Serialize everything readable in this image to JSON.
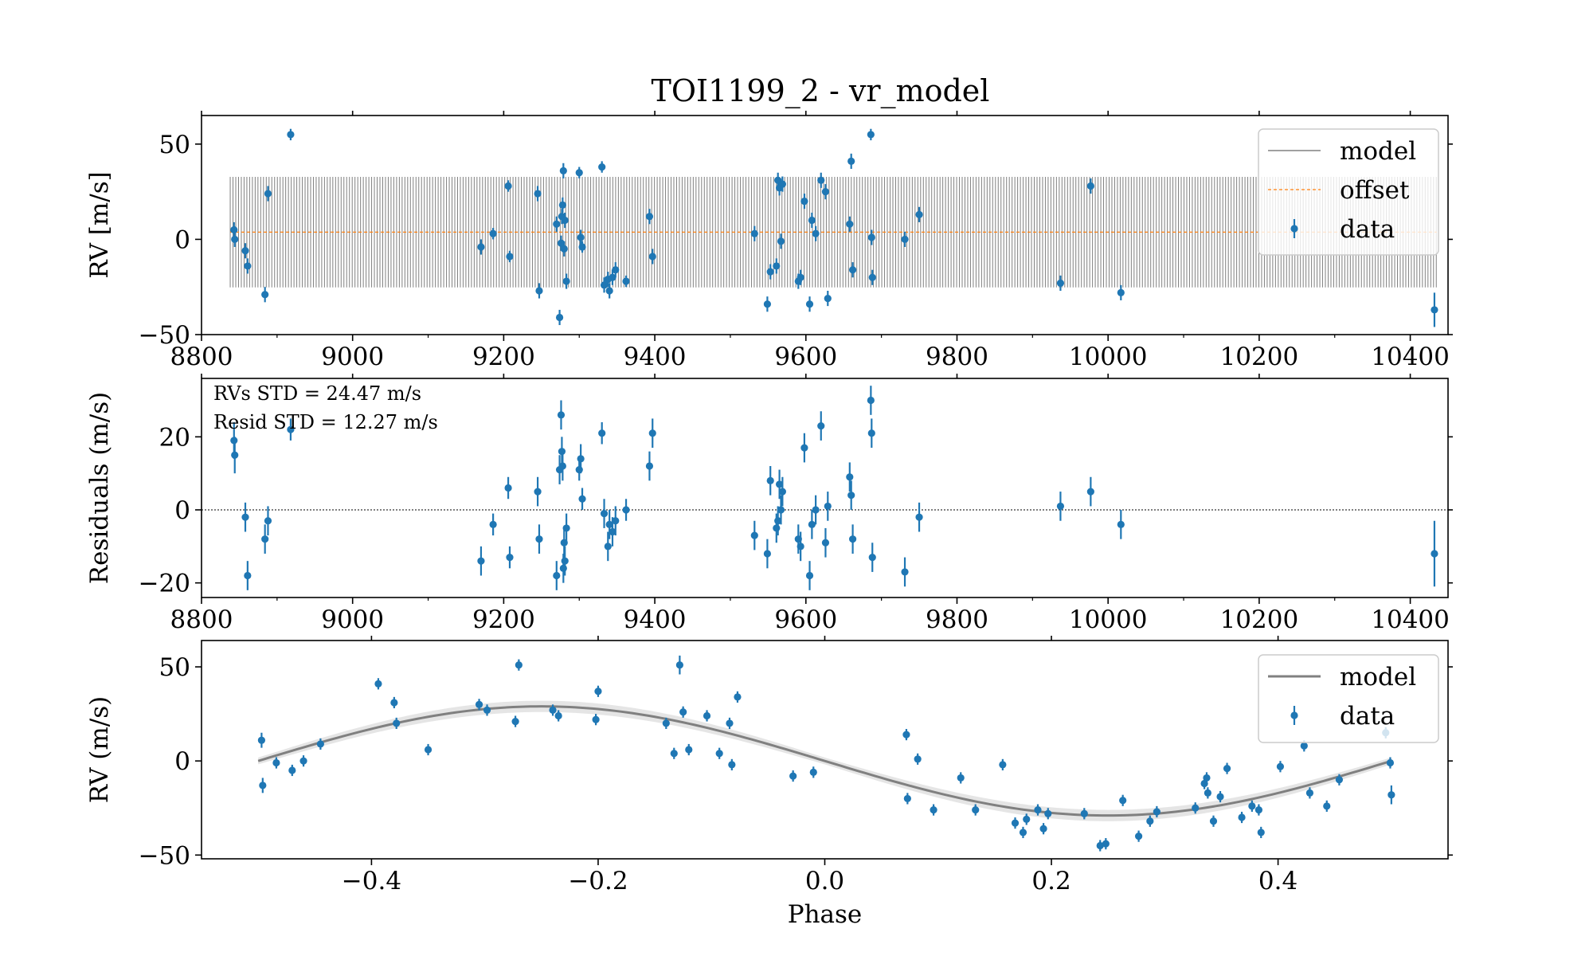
{
  "chart_data": [
    {
      "panel": "rv-time",
      "type": "scatter",
      "title": "TOI1199_2 - vr_model",
      "xlabel": "",
      "ylabel": "RV [m/s]",
      "xlim": [
        8800,
        10450
      ],
      "ylim": [
        -50,
        65
      ],
      "xticks": [
        "8800",
        "9000",
        "9200",
        "9400",
        "9600",
        "9800",
        "10000",
        "10200",
        "10400"
      ],
      "yticks": [
        "−50",
        "0",
        "50"
      ],
      "legend": {
        "placement": "top-right",
        "entries": [
          "model",
          "offset",
          "data"
        ]
      },
      "model": {
        "name": "model",
        "period_days": 3.67,
        "offset": 3.8,
        "amplitude": 29,
        "x_range": [
          8838,
          10435
        ],
        "color": "#808080"
      },
      "offset_line": {
        "name": "offset",
        "value": 3.8,
        "color": "#ff7f0e"
      },
      "series": [
        {
          "name": "data",
          "color": "#1f77b4",
          "x": [
            8843,
            8844,
            8858,
            8861,
            8884,
            8888,
            8918,
            9170,
            9186,
            9206,
            9208,
            9245,
            9247,
            9270,
            9274,
            9276,
            9277,
            9278,
            9279,
            9280,
            9281,
            9283,
            9300,
            9302,
            9304,
            9330,
            9333,
            9338,
            9340,
            9344,
            9348,
            9362,
            9393,
            9397,
            9532,
            9549,
            9553,
            9561,
            9563,
            9565,
            9567,
            9569,
            9590,
            9593,
            9598,
            9605,
            9608,
            9613,
            9620,
            9626,
            9629,
            9658,
            9660,
            9662,
            9686,
            9687,
            9688,
            9731,
            9750,
            9937,
            9977,
            10017,
            10432
          ],
          "y": [
            5,
            0,
            -6,
            -14,
            -29,
            24,
            55,
            -4,
            3,
            28,
            -9,
            24,
            -27,
            8,
            -41,
            -2,
            12,
            18,
            36,
            -5,
            10,
            -22,
            35,
            1,
            -4,
            38,
            -24,
            -21,
            -27,
            -20,
            -16,
            -22,
            12,
            -9,
            3,
            -34,
            -17,
            -14,
            31,
            27,
            -1,
            29,
            -22,
            -20,
            20,
            -34,
            10,
            3,
            31,
            25,
            -31,
            8,
            41,
            -16,
            55,
            1,
            -20,
            0,
            13,
            -23,
            28,
            -28,
            -37
          ],
          "yerr": [
            4,
            4,
            4,
            4,
            4,
            4,
            3,
            4,
            3,
            3,
            3,
            4,
            4,
            4,
            4,
            4,
            4,
            4,
            4,
            4,
            4,
            4,
            3,
            4,
            3,
            3,
            4,
            4,
            4,
            4,
            4,
            3,
            4,
            4,
            4,
            4,
            4,
            4,
            4,
            4,
            4,
            4,
            4,
            4,
            4,
            4,
            4,
            4,
            4,
            4,
            4,
            4,
            4,
            4,
            3,
            4,
            4,
            4,
            4,
            4,
            4,
            4,
            9
          ]
        }
      ]
    },
    {
      "panel": "residuals",
      "type": "scatter",
      "title": "",
      "xlabel": "",
      "ylabel": "Residuals (m/s)",
      "xlim": [
        8800,
        10450
      ],
      "ylim": [
        -24,
        36
      ],
      "xticks": [
        "8800",
        "9000",
        "9200",
        "9400",
        "9600",
        "9800",
        "10000",
        "10200",
        "10400"
      ],
      "yticks": [
        "−20",
        "0",
        "20"
      ],
      "zero_line": 0,
      "annotations": [
        "RVs STD = 24.47 m/s",
        "Resid STD = 12.27 m/s"
      ],
      "series": [
        {
          "name": "",
          "color": "#1f77b4",
          "x": [
            8843,
            8844,
            8858,
            8861,
            8884,
            8888,
            8918,
            9170,
            9186,
            9206,
            9208,
            9245,
            9247,
            9270,
            9274,
            9276,
            9277,
            9278,
            9279,
            9280,
            9281,
            9283,
            9300,
            9302,
            9304,
            9330,
            9333,
            9338,
            9340,
            9344,
            9348,
            9362,
            9393,
            9397,
            9532,
            9549,
            9553,
            9561,
            9563,
            9565,
            9567,
            9569,
            9590,
            9593,
            9598,
            9605,
            9608,
            9613,
            9620,
            9626,
            9629,
            9658,
            9660,
            9662,
            9686,
            9687,
            9688,
            9731,
            9750,
            9937,
            9977,
            10017,
            10432
          ],
          "y": [
            19,
            15,
            -2,
            -18,
            -8,
            -3,
            22,
            -14,
            -4,
            6,
            -13,
            5,
            -8,
            -18,
            11,
            26,
            16,
            12,
            -16,
            -9,
            -14,
            -5,
            11,
            14,
            3,
            21,
            -1,
            -10,
            -4,
            -6,
            -3,
            0,
            12,
            21,
            -7,
            -12,
            8,
            -5,
            -3,
            7,
            0,
            5,
            -8,
            -10,
            17,
            -18,
            -4,
            0,
            23,
            -9,
            1,
            9,
            4,
            -8,
            30,
            21,
            -13,
            -17,
            -2,
            1,
            5,
            -4,
            -12
          ],
          "yerr": [
            5,
            5,
            4,
            4,
            4,
            4,
            3,
            4,
            3,
            3,
            3,
            4,
            4,
            4,
            4,
            4,
            4,
            4,
            4,
            4,
            4,
            4,
            3,
            4,
            3,
            3,
            4,
            4,
            4,
            4,
            4,
            3,
            4,
            4,
            4,
            4,
            4,
            4,
            4,
            4,
            4,
            4,
            4,
            4,
            4,
            4,
            4,
            4,
            4,
            4,
            4,
            4,
            4,
            4,
            4,
            4,
            4,
            4,
            4,
            4,
            4,
            4,
            9
          ]
        }
      ]
    },
    {
      "panel": "phase-folded",
      "type": "scatter",
      "title": "",
      "xlabel": "Phase",
      "ylabel": "RV (m/s)",
      "xlim": [
        -0.55,
        0.55
      ],
      "ylim": [
        -52,
        64
      ],
      "xticks": [
        "−0.4",
        "−0.2",
        "0.0",
        "0.2",
        "0.4"
      ],
      "yticks": [
        "−50",
        "0",
        "50"
      ],
      "legend": {
        "placement": "top-right",
        "entries": [
          "model",
          "data"
        ]
      },
      "model": {
        "name": "model",
        "amplitude": 29,
        "color": "#808080",
        "band_color": "#d3d3d3"
      },
      "series": [
        {
          "name": "data",
          "color": "#1f77b4",
          "x": [
            -0.497,
            -0.496,
            -0.484,
            -0.47,
            -0.46,
            -0.445,
            -0.394,
            -0.38,
            -0.378,
            -0.35,
            -0.305,
            -0.298,
            -0.273,
            -0.27,
            -0.24,
            -0.235,
            -0.202,
            -0.2,
            -0.14,
            -0.133,
            -0.128,
            -0.125,
            -0.12,
            -0.104,
            -0.093,
            -0.084,
            -0.082,
            -0.077,
            -0.028,
            -0.01,
            0.072,
            0.073,
            0.082,
            0.096,
            0.12,
            0.133,
            0.157,
            0.168,
            0.175,
            0.178,
            0.188,
            0.193,
            0.197,
            0.229,
            0.243,
            0.248,
            0.263,
            0.277,
            0.287,
            0.293,
            0.327,
            0.335,
            0.337,
            0.338,
            0.343,
            0.349,
            0.355,
            0.368,
            0.377,
            0.383,
            0.385,
            0.402,
            0.423,
            0.428,
            0.443,
            0.454,
            0.495,
            0.499,
            0.5
          ],
          "y": [
            11,
            -13,
            -1,
            -5,
            0,
            9,
            41,
            31,
            20,
            6,
            30,
            27,
            21,
            51,
            27,
            24,
            22,
            37,
            20,
            4,
            51,
            26,
            6,
            24,
            4,
            20,
            -2,
            34,
            -8,
            -6,
            14,
            -20,
            1,
            -26,
            -9,
            -26,
            -2,
            -33,
            -38,
            -31,
            -26,
            -36,
            -28,
            -28,
            -45,
            -44,
            -21,
            -40,
            -32,
            -27,
            -25,
            -12,
            -9,
            -17,
            -32,
            -19,
            -4,
            -30,
            -24,
            -26,
            -38,
            -3,
            8,
            -17,
            -24,
            -10,
            15,
            -1,
            -18
          ],
          "yerr": [
            4,
            4,
            3,
            3,
            3,
            3,
            3,
            3,
            3,
            3,
            3,
            3,
            3,
            3,
            3,
            3,
            3,
            3,
            3,
            3,
            5,
            3,
            3,
            3,
            3,
            3,
            3,
            3,
            3,
            3,
            3,
            3,
            3,
            3,
            3,
            3,
            3,
            3,
            3,
            3,
            3,
            3,
            3,
            3,
            3,
            3,
            3,
            3,
            3,
            3,
            3,
            3,
            3,
            3,
            3,
            3,
            3,
            3,
            3,
            3,
            3,
            3,
            3,
            3,
            3,
            3,
            3,
            3,
            5
          ]
        }
      ]
    }
  ]
}
